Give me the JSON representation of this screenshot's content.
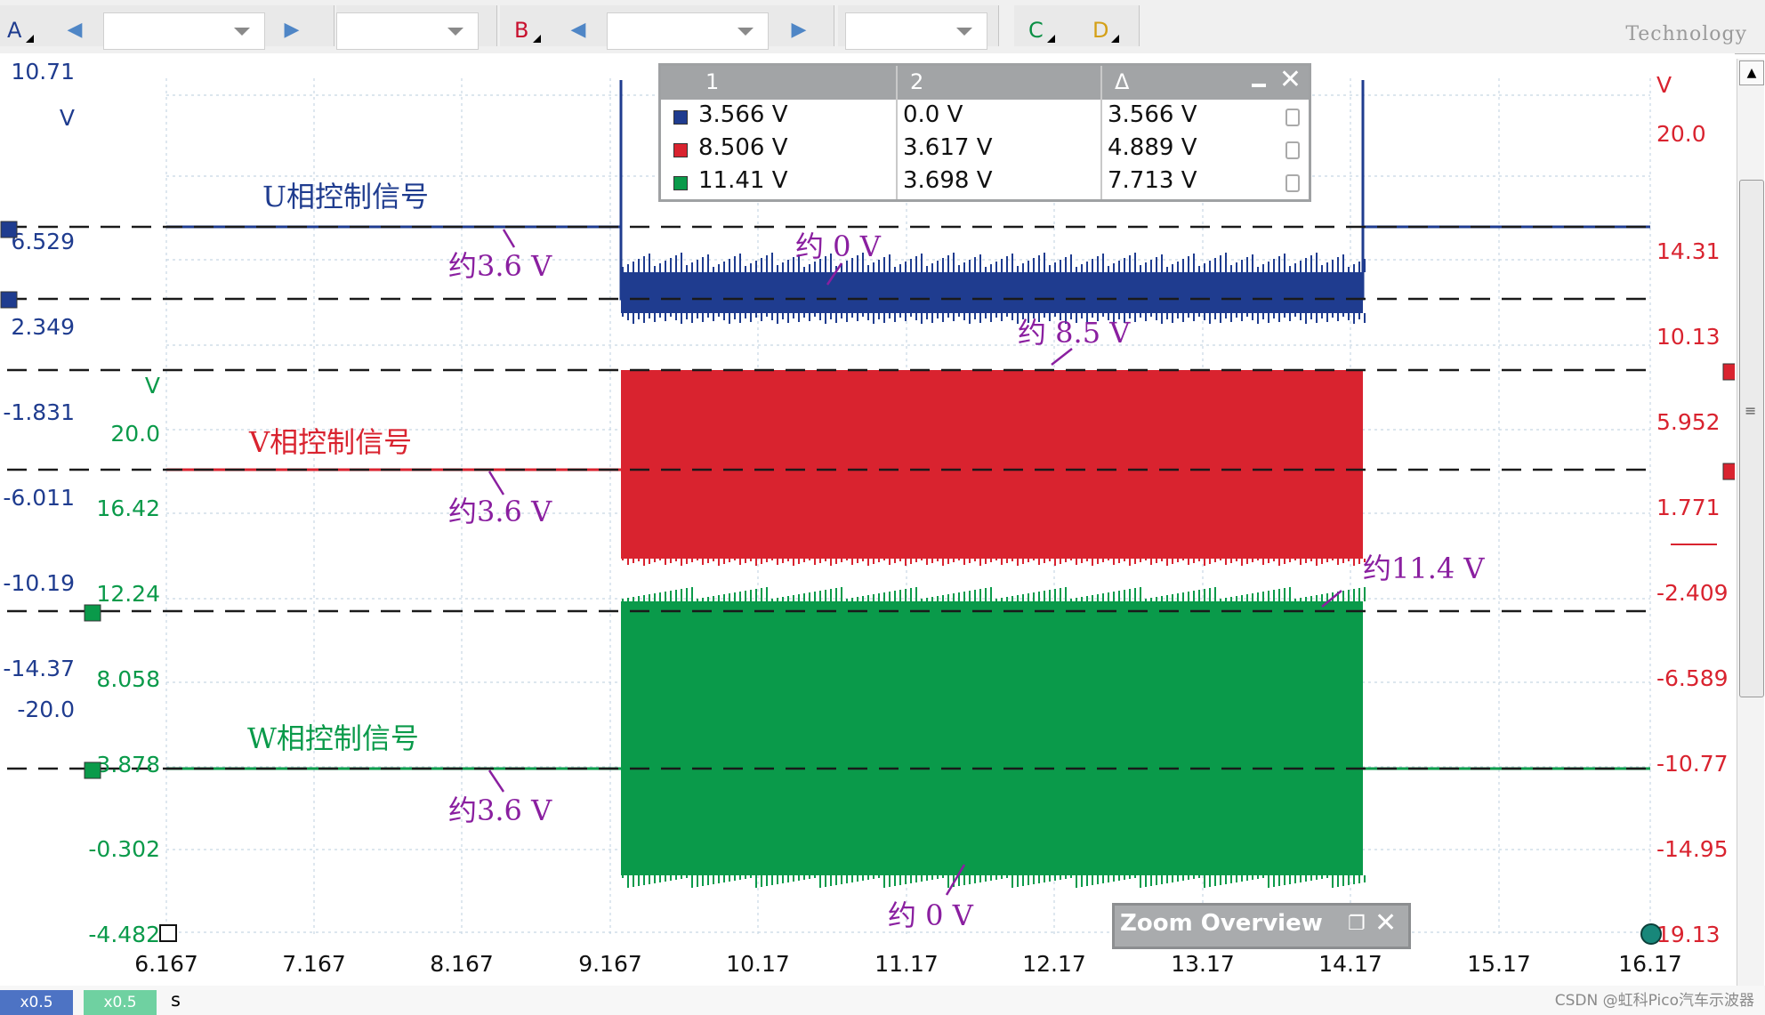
{
  "toolbar": {
    "channel_a": "A",
    "channel_b": "B",
    "channel_c": "C",
    "channel_d": "D",
    "brand": "Technology",
    "colors": {
      "a": "#1f3c8f",
      "b": "#c8102e",
      "c": "#0a8f44",
      "d": "#d4a017"
    }
  },
  "axes": {
    "left_blue_unit": "V",
    "left_blue": [
      "10.71",
      "6.529",
      "2.349",
      "-1.831",
      "-6.011",
      "-10.19",
      "-14.37",
      "-20.0"
    ],
    "left_green_unit": "V",
    "left_green": [
      "20.0",
      "16.42",
      "12.24",
      "8.058",
      "3.878",
      "-0.302",
      "-4.482"
    ],
    "right_red_unit": "V",
    "right_red": [
      "20.0",
      "14.31",
      "10.13",
      "5.952",
      "1.771",
      "-2.409",
      "-6.589",
      "-10.77",
      "-14.95",
      "19.13"
    ],
    "time": [
      "6.167",
      "7.167",
      "8.167",
      "9.167",
      "10.17",
      "11.17",
      "12.17",
      "13.17",
      "14.17",
      "15.17",
      "16.17"
    ],
    "time_unit": "s"
  },
  "measurements": {
    "headers": [
      "1",
      "2",
      "Δ"
    ],
    "rows": [
      {
        "color": "#1f3c8f",
        "c1": "3.566 V",
        "c2": "0.0 V",
        "delta": "3.566 V"
      },
      {
        "color": "#d9232f",
        "c1": "8.506 V",
        "c2": "3.617 V",
        "delta": "4.889 V"
      },
      {
        "color": "#0a9a4a",
        "c1": "11.41 V",
        "c2": "3.698 V",
        "delta": "7.713 V"
      }
    ]
  },
  "annotations": {
    "u_label": "U相控制信号",
    "v_label": "V相控制信号",
    "w_label": "W相控制信号",
    "u_idle": "约3.6 V",
    "u_active": "约 0 V",
    "v_idle": "约3.6 V",
    "v_active": "约 8.5 V",
    "w_idle": "约3.6 V",
    "w_high": "约11.4 V",
    "w_low": "约 0 V"
  },
  "zoom_overview": {
    "title": "Zoom Overview"
  },
  "status": {
    "zoom_a": "x0.5",
    "zoom_b": "x0.5",
    "watermark": "CSDN @虹科Pico汽车示波器"
  },
  "chart_data": {
    "type": "line",
    "xlabel": "s",
    "x_range": [
      6.167,
      16.17
    ],
    "series": [
      {
        "name": "U相控制信号",
        "color": "#1f3c8f",
        "segments": [
          {
            "from": 6.167,
            "to": 9.25,
            "v": 3.6
          },
          {
            "from": 9.25,
            "to": 14.25,
            "v": 0.0
          },
          {
            "from": 14.25,
            "to": 16.167,
            "v": 3.6
          }
        ]
      },
      {
        "name": "V相控制信号",
        "color": "#d9232f",
        "segments": [
          {
            "from": 6.167,
            "to": 9.25,
            "v": 3.6
          },
          {
            "from": 9.25,
            "to": 14.25,
            "v_low": 0.0,
            "v_high": 8.5
          }
        ]
      },
      {
        "name": "W相控制信号",
        "color": "#0a9a4a",
        "segments": [
          {
            "from": 6.167,
            "to": 9.25,
            "v": 3.6
          },
          {
            "from": 9.25,
            "to": 14.25,
            "v_low": 0.0,
            "v_high": 11.4
          },
          {
            "from": 14.25,
            "to": 16.167,
            "v": 3.6
          }
        ]
      }
    ]
  }
}
